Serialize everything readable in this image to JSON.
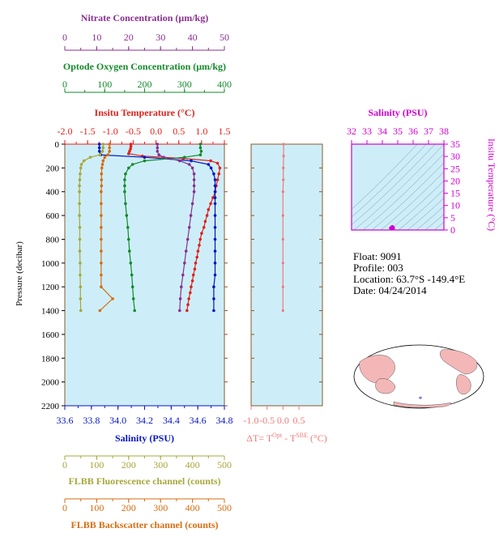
{
  "colors": {
    "nitrate": "#8a2f91",
    "oxygen": "#138a2a",
    "temperature": "#e0211c",
    "salinity": "#0716c0",
    "fluorescence": "#a7a83d",
    "backscatter": "#d66d12",
    "delta_t": "#f07b7b",
    "ts_axis": "#d000d0",
    "plot_bg": "#cdeef8",
    "frame": "#8b5a2b",
    "map_ocean": "#ffffff",
    "map_land": "#f3b7b7"
  },
  "info": {
    "float": "Float:  9091",
    "profile": "Profile:  003",
    "location": "Location:  63.7°S  -149.4°E",
    "date": "Date:  04/24/2014"
  },
  "footer_stamp": "",
  "chart_data": [
    {
      "type": "line",
      "panel": "main-profile",
      "ylabel": "Pressure (decibar)",
      "y_ticks": [
        0,
        200,
        400,
        600,
        800,
        1000,
        1200,
        1400,
        1600,
        1800,
        2000,
        2200
      ],
      "ylim": [
        2200,
        0
      ],
      "axes": {
        "nitrate": {
          "label": "Nitrate Concentration (μm/kg)",
          "ticks": [
            0,
            10,
            20,
            30,
            40,
            50
          ],
          "lim": [
            0,
            50
          ]
        },
        "oxygen": {
          "label": "Optode Oxygen Concentration (μm/kg)",
          "ticks": [
            0,
            100,
            200,
            300,
            400
          ],
          "lim": [
            0,
            400
          ]
        },
        "temperature": {
          "label": "Insitu Temperature (°C)",
          "ticks": [
            "-2.0",
            "-1.5",
            "-1.0",
            "-0.5",
            "0.0",
            "0.5",
            "1.0",
            "1.5"
          ],
          "lim": [
            -2.0,
            1.5
          ]
        },
        "salinity": {
          "label": "Salinity (PSU)",
          "ticks": [
            "33.6",
            "33.8",
            "34.0",
            "34.2",
            "34.4",
            "34.6",
            "34.8"
          ],
          "lim": [
            33.6,
            34.8
          ]
        },
        "fluorescence": {
          "label": "FLBB Fluorescence channel (counts)",
          "ticks": [
            0,
            100,
            200,
            300,
            400,
            500
          ],
          "lim": [
            0,
            500
          ]
        },
        "backscatter": {
          "label": "FLBB Backscatter channel (counts)",
          "ticks": [
            0,
            100,
            200,
            300,
            400,
            500
          ],
          "lim": [
            0,
            500
          ]
        }
      },
      "series": [
        {
          "key": "temperature",
          "points": [
            [
              0,
              -0.55
            ],
            [
              20,
              -0.55
            ],
            [
              40,
              -0.56
            ],
            [
              60,
              -0.58
            ],
            [
              80,
              -0.6
            ],
            [
              100,
              -0.3
            ],
            [
              120,
              0.6
            ],
            [
              140,
              1.2
            ],
            [
              160,
              1.35
            ],
            [
              200,
              1.4
            ],
            [
              250,
              1.38
            ],
            [
              300,
              1.35
            ],
            [
              350,
              1.32
            ],
            [
              400,
              1.3
            ],
            [
              450,
              1.25
            ],
            [
              500,
              1.2
            ],
            [
              550,
              1.15
            ],
            [
              600,
              1.12
            ],
            [
              650,
              1.08
            ],
            [
              700,
              1.05
            ],
            [
              750,
              1.0
            ],
            [
              800,
              0.97
            ],
            [
              850,
              0.95
            ],
            [
              900,
              0.92
            ],
            [
              950,
              0.9
            ],
            [
              1000,
              0.87
            ],
            [
              1050,
              0.85
            ],
            [
              1100,
              0.82
            ],
            [
              1150,
              0.8
            ],
            [
              1200,
              0.77
            ],
            [
              1250,
              0.75
            ],
            [
              1300,
              0.72
            ],
            [
              1350,
              0.7
            ],
            [
              1400,
              0.68
            ]
          ]
        },
        {
          "key": "salinity",
          "points": [
            [
              0,
              33.86
            ],
            [
              30,
              33.86
            ],
            [
              60,
              33.86
            ],
            [
              90,
              33.87
            ],
            [
              110,
              34.2
            ],
            [
              140,
              34.55
            ],
            [
              170,
              34.68
            ],
            [
              200,
              34.7
            ],
            [
              250,
              34.72
            ],
            [
              300,
              34.73
            ],
            [
              350,
              34.73
            ],
            [
              400,
              34.73
            ],
            [
              450,
              34.73
            ],
            [
              500,
              34.73
            ],
            [
              600,
              34.73
            ],
            [
              700,
              34.73
            ],
            [
              800,
              34.73
            ],
            [
              900,
              34.73
            ],
            [
              1000,
              34.73
            ],
            [
              1100,
              34.73
            ],
            [
              1200,
              34.72
            ],
            [
              1300,
              34.72
            ],
            [
              1400,
              34.72
            ]
          ]
        },
        {
          "key": "oxygen",
          "points": [
            [
              0,
              340
            ],
            [
              30,
              340
            ],
            [
              60,
              342
            ],
            [
              90,
              340
            ],
            [
              110,
              300
            ],
            [
              140,
              200
            ],
            [
              170,
              170
            ],
            [
              200,
              160
            ],
            [
              250,
              152
            ],
            [
              300,
              150
            ],
            [
              350,
              150
            ],
            [
              400,
              150
            ],
            [
              500,
              152
            ],
            [
              600,
              155
            ],
            [
              700,
              158
            ],
            [
              800,
              160
            ],
            [
              900,
              162
            ],
            [
              1000,
              165
            ],
            [
              1100,
              168
            ],
            [
              1200,
              170
            ],
            [
              1300,
              172
            ],
            [
              1400,
              175
            ]
          ]
        },
        {
          "key": "nitrate",
          "points": [
            [
              0,
              29
            ],
            [
              30,
              29
            ],
            [
              60,
              29
            ],
            [
              90,
              29.5
            ],
            [
              110,
              31
            ],
            [
              140,
              36
            ],
            [
              170,
              39
            ],
            [
              200,
              40
            ],
            [
              250,
              40.5
            ],
            [
              300,
              40.5
            ],
            [
              350,
              40.5
            ],
            [
              400,
              40.5
            ],
            [
              500,
              40
            ],
            [
              600,
              39.5
            ],
            [
              700,
              39
            ],
            [
              800,
              38.5
            ],
            [
              900,
              38
            ],
            [
              1000,
              37.5
            ],
            [
              1100,
              37
            ],
            [
              1200,
              36.5
            ],
            [
              1300,
              36.2
            ],
            [
              1400,
              36
            ]
          ]
        },
        {
          "key": "fluorescence",
          "points": [
            [
              0,
              120
            ],
            [
              30,
              120
            ],
            [
              60,
              118
            ],
            [
              90,
              110
            ],
            [
              110,
              80
            ],
            [
              140,
              60
            ],
            [
              170,
              52
            ],
            [
              200,
              50
            ],
            [
              250,
              48
            ],
            [
              300,
              47
            ],
            [
              350,
              46
            ],
            [
              400,
              46
            ],
            [
              500,
              46
            ],
            [
              600,
              46
            ],
            [
              700,
              47
            ],
            [
              800,
              47
            ],
            [
              900,
              47
            ],
            [
              1000,
              48
            ],
            [
              1100,
              48
            ],
            [
              1200,
              49
            ],
            [
              1300,
              49
            ],
            [
              1400,
              50
            ]
          ]
        },
        {
          "key": "backscatter",
          "points": [
            [
              0,
              140
            ],
            [
              30,
              140
            ],
            [
              60,
              140
            ],
            [
              90,
              135
            ],
            [
              110,
              125
            ],
            [
              140,
              120
            ],
            [
              170,
              118
            ],
            [
              200,
              116
            ],
            [
              250,
              115
            ],
            [
              300,
              115
            ],
            [
              350,
              115
            ],
            [
              400,
              114
            ],
            [
              500,
              114
            ],
            [
              600,
              114
            ],
            [
              700,
              114
            ],
            [
              800,
              114
            ],
            [
              900,
              114
            ],
            [
              1000,
              114
            ],
            [
              1100,
              114
            ],
            [
              1200,
              114
            ],
            [
              1300,
              150
            ],
            [
              1400,
              110
            ]
          ]
        }
      ]
    },
    {
      "type": "line",
      "panel": "delta-t",
      "xlabel": "ΔT= T",
      "xlabel_sup1": "Opt",
      "xlabel_mid": " - T",
      "xlabel_sup2": "SBE",
      "xlabel_unit": " (°C)",
      "x_ticks": [
        "-1.0",
        "-0.5",
        "0.0",
        "0.5"
      ],
      "xlim": [
        -1.0,
        0.5
      ],
      "ylim": [
        2200,
        0
      ],
      "series": [
        {
          "key": "delta_t",
          "points": [
            [
              0,
              0.02
            ],
            [
              100,
              0.02
            ],
            [
              200,
              0.01
            ],
            [
              300,
              0.01
            ],
            [
              400,
              0.0
            ],
            [
              600,
              0.0
            ],
            [
              800,
              0.0
            ],
            [
              1000,
              0.0
            ],
            [
              1200,
              0.0
            ],
            [
              1400,
              0.0
            ]
          ]
        }
      ]
    },
    {
      "type": "scatter",
      "panel": "ts-diagram",
      "title": "Salinity (PSU)",
      "ylabel": "Insitu Temperature (°C)",
      "x_ticks": [
        32,
        33,
        34,
        35,
        36,
        37,
        38
      ],
      "xlim": [
        32,
        38
      ],
      "y_ticks": [
        0,
        5,
        10,
        15,
        20,
        25,
        30,
        35
      ],
      "ylim": [
        0,
        35
      ],
      "points": [
        [
          34.6,
          0.5
        ],
        [
          34.7,
          1.0
        ],
        [
          34.65,
          1.3
        ],
        [
          34.55,
          0.8
        ],
        [
          34.7,
          0.6
        ]
      ]
    }
  ]
}
